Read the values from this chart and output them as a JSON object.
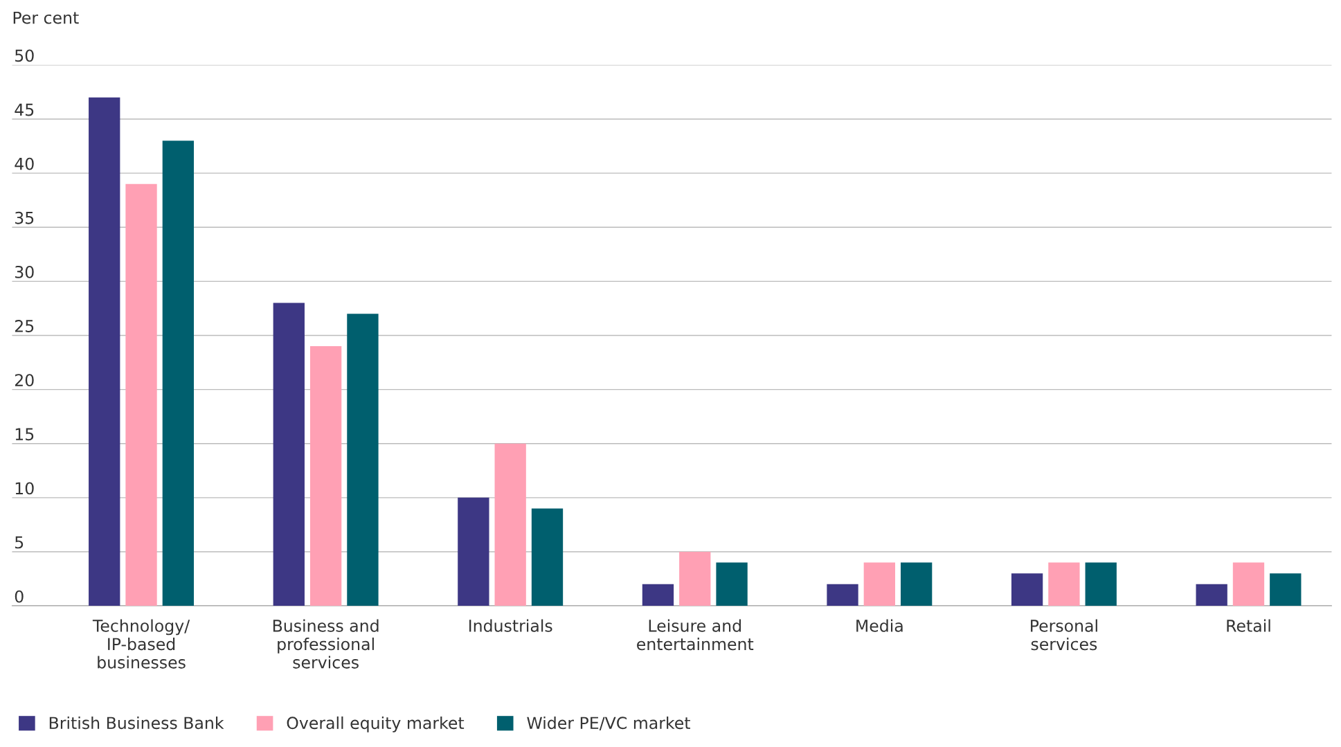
{
  "chart_data": {
    "type": "bar",
    "ylabel": "Per cent",
    "categories": [
      "Technology/\nIP-based\nbusinesses",
      "Business and\nprofessional\nservices",
      "Industrials",
      "Leisure and\nentertainment",
      "Media",
      "Personal\nservices",
      "Retail"
    ],
    "series": [
      {
        "name": "British Business Bank",
        "color": "#3d3784",
        "values": [
          47,
          28,
          10,
          2,
          2,
          3,
          2
        ]
      },
      {
        "name": "Overall equity market",
        "color": "#ffa0b4",
        "values": [
          39,
          24,
          15,
          5,
          4,
          4,
          4
        ]
      },
      {
        "name": "Wider PE/VC market",
        "color": "#005f6e",
        "values": [
          43,
          27,
          9,
          4,
          4,
          4,
          3
        ]
      }
    ],
    "ylim": [
      0,
      50
    ],
    "yticks": [
      0,
      5,
      10,
      15,
      20,
      25,
      30,
      35,
      40,
      45,
      50
    ],
    "grid": "y",
    "legend": "bottom left"
  }
}
